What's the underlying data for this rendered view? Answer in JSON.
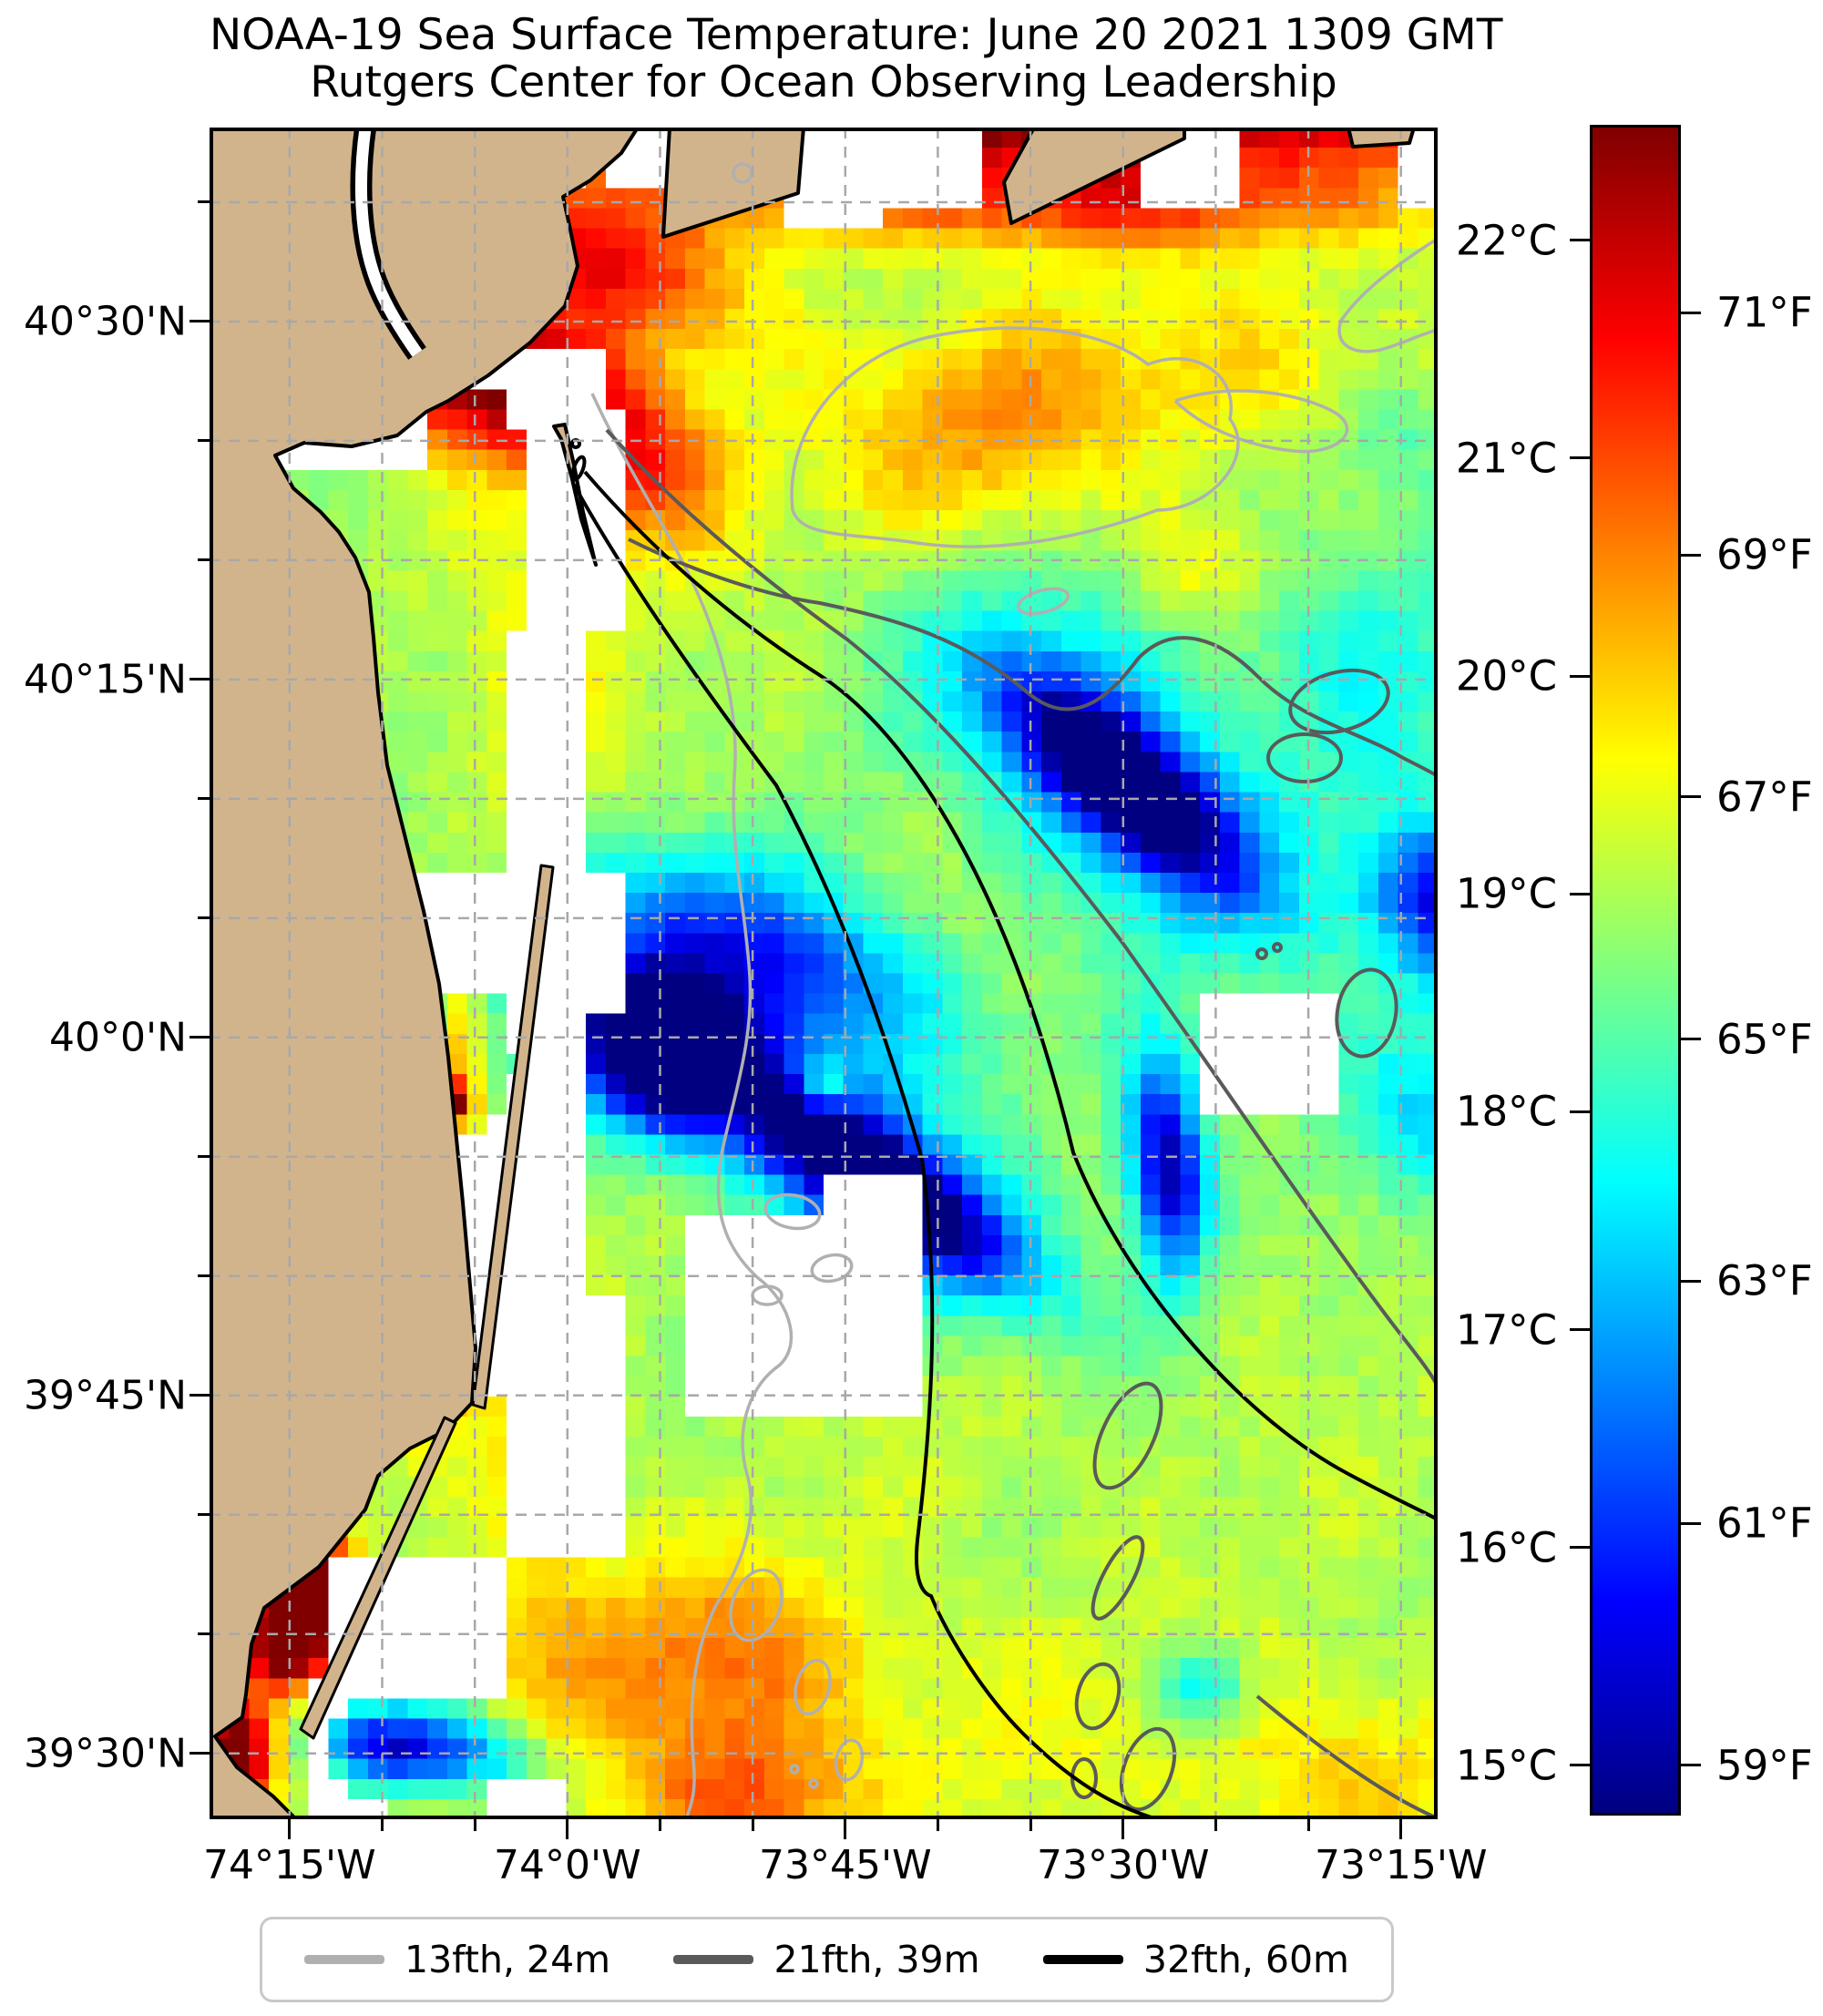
{
  "title": {
    "line1": "NOAA-19 Sea Surface Temperature: June 20 2021 1309 GMT",
    "line2": "Rutgers Center for Ocean Observing Leadership"
  },
  "x_axis": {
    "tick_labels": [
      "74°15'W",
      "74°0'W",
      "73°45'W",
      "73°30'W",
      "73°15'W"
    ],
    "tick_lons": [
      -74.25,
      -74.0,
      -73.75,
      -73.5,
      -73.25
    ],
    "minor_step_arcmin": 5
  },
  "y_axis": {
    "tick_labels": [
      "40°30'N",
      "40°15'N",
      "40°0'N",
      "39°45'N",
      "39°30'N"
    ],
    "tick_lats": [
      40.5,
      40.25,
      40.0,
      39.75,
      39.5
    ],
    "minor_step_arcmin": 5
  },
  "colorbar": {
    "range_c": [
      14.77,
      22.53
    ],
    "c_ticks": [
      15,
      16,
      17,
      18,
      19,
      20,
      21,
      22
    ],
    "c_tick_labels": [
      "15°C",
      "16°C",
      "17°C",
      "18°C",
      "19°C",
      "20°C",
      "21°C",
      "22°C"
    ],
    "f_ticks": [
      59,
      61,
      63,
      65,
      67,
      69,
      71
    ],
    "f_tick_labels": [
      "59°F",
      "61°F",
      "63°F",
      "65°F",
      "67°F",
      "69°F",
      "71°F"
    ],
    "gradient_stops_bottom_to_top": [
      "#000080",
      "#0000ff",
      "#00ffff",
      "#ffff00",
      "#ff0000",
      "#800000"
    ],
    "gradient_positions_pct": [
      0,
      12.5,
      37.5,
      62.5,
      87.5,
      100
    ]
  },
  "legend": {
    "entries": [
      {
        "label": "13fth, 24m",
        "color": "#b0b0b0"
      },
      {
        "label": "21fth, 39m",
        "color": "#5a5a5a"
      },
      {
        "label": "32fth, 60m",
        "color": "#000000"
      }
    ]
  },
  "chart_data": {
    "type": "heatmap",
    "title": "NOAA-19 Sea Surface Temperature: June 20 2021 1309 GMT",
    "subtitle": "Rutgers Center for Ocean Observing Leadership",
    "units": "degC (left colorbar) / degF (right colorbar)",
    "extent": {
      "lon_min": -74.322,
      "lon_max": -73.217,
      "lat_min": 39.454,
      "lat_max": 40.6355
    },
    "grid": {
      "cols": 62,
      "rows": 84
    },
    "colormap": "jet",
    "value_range_c": [
      14.77,
      22.53
    ],
    "base_temp_c": 18.9,
    "land_color": "#d2b48c",
    "coast_color": "#000000",
    "nodata_color": "#ffffff",
    "gridline_color": "#a8a8a8",
    "contours": {
      "c13": "#b0b0b0",
      "c21": "#5a5a5a",
      "c32": "#000000"
    },
    "features": [
      {
        "name": "li-shore-hot-band",
        "lon": -73.62,
        "lat": 40.655,
        "rx": 0.55,
        "ry": 0.045,
        "rot": 0,
        "dt": 4.6
      },
      {
        "name": "harbor-warm-plume",
        "lon": -74.12,
        "lat": 40.48,
        "rx": 0.17,
        "ry": 0.055,
        "rot": -18,
        "dt": 4.4
      },
      {
        "name": "harbor-plume-tail",
        "lon": -73.98,
        "lat": 40.545,
        "rx": 0.14,
        "ry": 0.05,
        "rot": -15,
        "dt": 2.6
      },
      {
        "name": "nearshore-red-band",
        "lon": -73.55,
        "lat": 40.585,
        "rx": 0.35,
        "ry": 0.035,
        "rot": 0,
        "dt": 2.2
      },
      {
        "name": "sandyhook-warm",
        "lon": -73.93,
        "lat": 40.4,
        "rx": 0.09,
        "ry": 0.06,
        "rot": -30,
        "dt": 1.6
      },
      {
        "name": "warm-upper-mid",
        "lon": -73.63,
        "lat": 40.42,
        "rx": 0.16,
        "ry": 0.08,
        "rot": 0,
        "dt": 1.35
      },
      {
        "name": "warm-upper-right",
        "lon": -73.38,
        "lat": 40.47,
        "rx": 0.2,
        "ry": 0.07,
        "rot": 0,
        "dt": 0.9
      },
      {
        "name": "warm-mid-right",
        "lon": -73.43,
        "lat": 40.33,
        "rx": 0.07,
        "ry": 0.045,
        "rot": 0,
        "dt": 1.15
      },
      {
        "name": "cool-teal-top-right",
        "lon": -73.25,
        "lat": 40.43,
        "rx": 0.07,
        "ry": 0.05,
        "rot": 0,
        "dt": -0.9
      },
      {
        "name": "cold-filament-a-core",
        "lon": -73.5,
        "lat": 40.18,
        "rx": 0.12,
        "ry": 0.04,
        "rot": -32,
        "dt": -4.2
      },
      {
        "name": "cold-filament-a-halo",
        "lon": -73.5,
        "lat": 40.17,
        "rx": 0.19,
        "ry": 0.085,
        "rot": -32,
        "dt": -1.8
      },
      {
        "name": "cold-right-edge",
        "lon": -73.2,
        "lat": 40.09,
        "rx": 0.08,
        "ry": 0.055,
        "rot": -20,
        "dt": -3.6
      },
      {
        "name": "cool-right",
        "lon": -73.22,
        "lat": 39.95,
        "rx": 0.09,
        "ry": 0.06,
        "rot": 0,
        "dt": -1.4
      },
      {
        "name": "cold-coastal-core",
        "lon": -73.92,
        "lat": 39.99,
        "rx": 0.075,
        "ry": 0.05,
        "rot": -15,
        "dt": -4.4
      },
      {
        "name": "cold-coastal-halo",
        "lon": -73.88,
        "lat": 40.02,
        "rx": 0.16,
        "ry": 0.09,
        "rot": -15,
        "dt": -2.2
      },
      {
        "name": "cyan-band",
        "lon": -73.8,
        "lat": 40.06,
        "rx": 0.16,
        "ry": 0.05,
        "rot": -15,
        "dt": -1.6
      },
      {
        "name": "cold-filament-b-core",
        "lon": -73.72,
        "lat": 39.9,
        "rx": 0.13,
        "ry": 0.035,
        "rot": -27,
        "dt": -4.2
      },
      {
        "name": "cold-filament-b-halo",
        "lon": -73.7,
        "lat": 39.89,
        "rx": 0.18,
        "ry": 0.07,
        "rot": -27,
        "dt": -1.6
      },
      {
        "name": "cold-blob-east-edge",
        "lon": -73.46,
        "lat": 39.91,
        "rx": 0.035,
        "ry": 0.075,
        "rot": 8,
        "dt": -4.0
      },
      {
        "name": "warm-dot-mid",
        "lon": -73.77,
        "lat": 39.965,
        "rx": 0.025,
        "ry": 0.022,
        "rot": 0,
        "dt": 1.8
      },
      {
        "name": "warm-bottom-center",
        "lon": -73.88,
        "lat": 39.57,
        "rx": 0.14,
        "ry": 0.07,
        "rot": 0,
        "dt": 1.5
      },
      {
        "name": "warm-bottom-edge",
        "lon": -73.84,
        "lat": 39.465,
        "rx": 0.11,
        "ry": 0.05,
        "rot": 0,
        "dt": 1.7
      },
      {
        "name": "warm-se",
        "lon": -73.3,
        "lat": 39.48,
        "rx": 0.12,
        "ry": 0.06,
        "rot": 0,
        "dt": 0.8
      },
      {
        "name": "coastal-red-lbi",
        "lon": -74.14,
        "lat": 39.78,
        "rx": 0.045,
        "ry": 0.05,
        "rot": 0,
        "dt": 3.6
      },
      {
        "name": "hot-little-egg",
        "lon": -74.235,
        "lat": 39.615,
        "rx": 0.04,
        "ry": 0.055,
        "rot": 0,
        "dt": 4.6
      },
      {
        "name": "hot-little-egg-2",
        "lon": -74.26,
        "lat": 39.58,
        "rx": 0.035,
        "ry": 0.035,
        "rot": 0,
        "dt": 3.0
      },
      {
        "name": "hot-bottom-left",
        "lon": -74.3,
        "lat": 39.5,
        "rx": 0.035,
        "ry": 0.045,
        "rot": 0,
        "dt": 4.4
      },
      {
        "name": "cold-band-bottom-left",
        "lon": -74.12,
        "lat": 39.505,
        "rx": 0.1,
        "ry": 0.028,
        "rot": -8,
        "dt": -2.6
      },
      {
        "name": "cold-core-bottom-left",
        "lon": -74.17,
        "lat": 39.5,
        "rx": 0.045,
        "ry": 0.022,
        "rot": -8,
        "dt": -1.6
      },
      {
        "name": "cool-dot-bottom",
        "lon": -73.43,
        "lat": 39.545,
        "rx": 0.045,
        "ry": 0.03,
        "rot": 0,
        "dt": -1.7
      },
      {
        "name": "lagoon-warm",
        "lon": -74.095,
        "lat": 39.99,
        "rx": 0.018,
        "ry": 0.045,
        "rot": 0,
        "dt": 1.6
      },
      {
        "name": "lagoon-red",
        "lon": -74.1,
        "lat": 39.955,
        "rx": 0.014,
        "ry": 0.014,
        "rot": 0,
        "dt": 3.2
      },
      {
        "name": "warm-west-mid",
        "lon": -74.02,
        "lat": 40.25,
        "rx": 0.08,
        "ry": 0.13,
        "rot": 0,
        "dt": 0.9
      },
      {
        "name": "warm-coastal-south",
        "lon": -74.03,
        "lat": 39.7,
        "rx": 0.06,
        "ry": 0.22,
        "rot": 0,
        "dt": 0.8
      },
      {
        "name": "cool-mid-east",
        "lon": -73.42,
        "lat": 40.31,
        "rx": 0.18,
        "ry": 0.09,
        "rot": 0,
        "dt": -0.6
      },
      {
        "name": "cool-mid",
        "lon": -73.26,
        "lat": 40.24,
        "rx": 0.1,
        "ry": 0.09,
        "rot": 0,
        "dt": -0.8
      },
      {
        "name": "warm-south-band",
        "lon": -73.6,
        "lat": 39.52,
        "rx": 0.45,
        "ry": 0.09,
        "rot": 0,
        "dt": 0.5
      },
      {
        "name": "warm-mid-band",
        "lon": -73.55,
        "lat": 39.75,
        "rx": 0.4,
        "ry": 0.12,
        "rot": 0,
        "dt": 0.25
      }
    ],
    "nodata_boxes": [
      [
        -74.05,
        40.42,
        -73.97,
        40.48
      ],
      [
        -74.03,
        40.28,
        -73.95,
        40.42
      ],
      [
        -74.05,
        40.12,
        -73.99,
        40.28
      ],
      [
        -74.07,
        40.02,
        -73.94,
        40.12
      ],
      [
        -74.08,
        39.82,
        -73.99,
        40.02
      ],
      [
        -74.05,
        39.64,
        -73.94,
        39.82
      ],
      [
        -74.22,
        39.54,
        -74.05,
        39.64
      ],
      [
        -74.24,
        39.45,
        -74.16,
        39.55
      ],
      [
        -73.89,
        39.74,
        -73.68,
        39.88
      ],
      [
        -73.77,
        39.875,
        -73.68,
        39.91
      ],
      [
        -73.43,
        39.94,
        -73.31,
        40.03
      ],
      [
        -73.8,
        40.565,
        -73.72,
        40.636
      ],
      [
        -73.48,
        40.58,
        -73.4,
        40.636
      ],
      [
        -73.25,
        40.585,
        -73.217,
        40.636
      ],
      [
        -74.13,
        40.455,
        -74.05,
        40.51
      ],
      [
        -74.265,
        40.39,
        -74.13,
        40.46
      ],
      [
        -74.14,
        39.75,
        -74.03,
        40.12
      ],
      [
        -74.02,
        40.33,
        -73.94,
        40.445
      ],
      [
        -74.08,
        39.454,
        -74.01,
        39.478
      ],
      [
        -74.07,
        40.595,
        -73.99,
        40.636
      ],
      [
        -73.73,
        40.585,
        -73.62,
        40.636
      ],
      [
        -73.96,
        40.6,
        -73.88,
        40.636
      ]
    ],
    "data_spots": [
      {
        "lon": -74.095,
        "lat": 39.985,
        "r": 0.05
      },
      {
        "lon": -74.1,
        "lat": 39.95,
        "r": 0.02
      },
      {
        "lon": -74.14,
        "lat": 39.78,
        "r": 0.05
      },
      {
        "lon": -74.18,
        "lat": 39.505,
        "r": 0.035
      }
    ]
  }
}
